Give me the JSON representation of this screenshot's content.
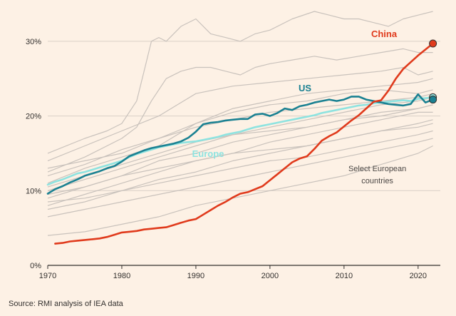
{
  "chart_data": {
    "type": "line",
    "title": "",
    "xlabel": "",
    "ylabel": "",
    "xlim": [
      1970,
      2023
    ],
    "ylim": [
      0,
      34
    ],
    "x_ticks": [
      1970,
      1980,
      1990,
      2000,
      2010,
      2020
    ],
    "x_tick_labels": [
      "1970",
      "1980",
      "1990",
      "2000",
      "2010",
      "2020"
    ],
    "y_ticks": [
      0,
      10,
      20,
      30
    ],
    "y_tick_labels": [
      "0%",
      "10%",
      "20%",
      "30%"
    ],
    "grid": "horizontal",
    "colors": {
      "china": "#e03a1c",
      "us": "#1a8192",
      "europe": "#8ee3e0",
      "countries": "#c9c2bc",
      "axis": "#33302e",
      "grid": "#d9d0c7"
    },
    "highlight_series": [
      {
        "name": "China",
        "label": "China",
        "endpoint_marker": true,
        "x": [
          1971,
          1972,
          1973,
          1974,
          1975,
          1976,
          1977,
          1978,
          1979,
          1980,
          1981,
          1982,
          1983,
          1984,
          1985,
          1986,
          1987,
          1988,
          1989,
          1990,
          1991,
          1992,
          1993,
          1994,
          1995,
          1996,
          1997,
          1998,
          1999,
          2000,
          2001,
          2002,
          2003,
          2004,
          2005,
          2006,
          2007,
          2008,
          2009,
          2010,
          2011,
          2012,
          2013,
          2014,
          2015,
          2016,
          2017,
          2018,
          2019,
          2020,
          2021,
          2022
        ],
        "values": [
          2.9,
          3.0,
          3.2,
          3.3,
          3.4,
          3.5,
          3.6,
          3.8,
          4.1,
          4.4,
          4.5,
          4.6,
          4.8,
          4.9,
          5.0,
          5.1,
          5.4,
          5.7,
          6.0,
          6.2,
          6.8,
          7.4,
          8.0,
          8.5,
          9.1,
          9.6,
          9.8,
          10.2,
          10.6,
          11.4,
          12.2,
          13.0,
          13.8,
          14.3,
          14.6,
          15.6,
          16.7,
          17.3,
          17.8,
          18.6,
          19.4,
          20.1,
          21.0,
          21.9,
          22.1,
          23.4,
          25.0,
          26.3,
          27.2,
          28.1,
          28.9,
          29.7
        ]
      },
      {
        "name": "US",
        "label": "US",
        "endpoint_marker": true,
        "x": [
          1970,
          1971,
          1972,
          1973,
          1974,
          1975,
          1976,
          1977,
          1978,
          1979,
          1980,
          1981,
          1982,
          1983,
          1984,
          1985,
          1986,
          1987,
          1988,
          1989,
          1990,
          1991,
          1992,
          1993,
          1994,
          1995,
          1996,
          1997,
          1998,
          1999,
          2000,
          2001,
          2002,
          2003,
          2004,
          2005,
          2006,
          2007,
          2008,
          2009,
          2010,
          2011,
          2012,
          2013,
          2014,
          2015,
          2016,
          2017,
          2018,
          2019,
          2020,
          2021,
          2022
        ],
        "values": [
          9.6,
          10.2,
          10.6,
          11.1,
          11.5,
          12.0,
          12.3,
          12.6,
          13.0,
          13.3,
          13.9,
          14.6,
          15.0,
          15.4,
          15.7,
          15.9,
          16.1,
          16.3,
          16.6,
          17.1,
          17.9,
          18.9,
          19.1,
          19.2,
          19.4,
          19.5,
          19.6,
          19.6,
          20.2,
          20.3,
          20.0,
          20.4,
          21.0,
          20.8,
          21.3,
          21.5,
          21.8,
          22.0,
          22.2,
          22.0,
          22.2,
          22.6,
          22.6,
          22.2,
          22.0,
          21.8,
          21.6,
          21.5,
          21.4,
          21.6,
          22.9,
          21.8,
          22.2
        ]
      },
      {
        "name": "Europe",
        "label": "Europe",
        "endpoint_marker": true,
        "x": [
          1970,
          1971,
          1972,
          1973,
          1974,
          1975,
          1976,
          1977,
          1978,
          1979,
          1980,
          1981,
          1982,
          1983,
          1984,
          1985,
          1986,
          1987,
          1988,
          1989,
          1990,
          1991,
          1992,
          1993,
          1994,
          1995,
          1996,
          1997,
          1998,
          1999,
          2000,
          2001,
          2002,
          2003,
          2004,
          2005,
          2006,
          2007,
          2008,
          2009,
          2010,
          2011,
          2012,
          2013,
          2014,
          2015,
          2016,
          2017,
          2018,
          2019,
          2020,
          2021,
          2022
        ],
        "values": [
          10.8,
          11.2,
          11.5,
          11.9,
          12.3,
          12.5,
          12.8,
          13.1,
          13.4,
          13.7,
          14.0,
          14.5,
          14.9,
          15.2,
          15.5,
          15.8,
          16.0,
          16.2,
          16.4,
          16.5,
          16.6,
          16.8,
          17.0,
          17.2,
          17.5,
          17.7,
          17.9,
          18.2,
          18.5,
          18.7,
          18.9,
          19.1,
          19.3,
          19.5,
          19.7,
          19.9,
          20.1,
          20.4,
          20.6,
          20.8,
          21.0,
          21.2,
          21.4,
          21.5,
          21.7,
          21.8,
          21.9,
          22.0,
          22.1,
          22.0,
          22.3,
          22.4,
          22.5
        ]
      }
    ],
    "background_series": [
      {
        "name": "country-1",
        "x": [
          1970,
          1975,
          1978,
          1980,
          1982,
          1983,
          1984,
          1985,
          1986,
          1988,
          1990,
          1992,
          1994,
          1996,
          1998,
          2000,
          2003,
          2006,
          2008,
          2010,
          2012,
          2014,
          2016,
          2018,
          2020,
          2022
        ],
        "values": [
          15,
          17,
          18,
          19,
          22,
          26,
          30,
          30.5,
          30,
          32,
          33,
          31,
          30.5,
          30,
          31,
          31.5,
          33,
          34,
          33.5,
          33,
          33,
          32.5,
          32,
          33,
          33.5,
          34
        ]
      },
      {
        "name": "country-2",
        "x": [
          1970,
          1975,
          1980,
          1982,
          1984,
          1986,
          1988,
          1990,
          1992,
          1994,
          1996,
          1998,
          2000,
          2003,
          2006,
          2009,
          2012,
          2015,
          2018,
          2020,
          2022
        ],
        "values": [
          12.5,
          14.5,
          17,
          18.5,
          22,
          25,
          26,
          26.5,
          26.5,
          26,
          25.5,
          26.5,
          27,
          27.5,
          28,
          27.5,
          28,
          28.5,
          29,
          28.5,
          28.5
        ]
      },
      {
        "name": "country-3",
        "x": [
          1970,
          1975,
          1980,
          1985,
          1990,
          1995,
          2000,
          2005,
          2010,
          2015,
          2018,
          2020,
          2022
        ],
        "values": [
          14,
          16,
          18,
          20,
          23,
          24,
          24.5,
          25,
          25.5,
          26,
          26.5,
          25.5,
          26
        ]
      },
      {
        "name": "country-4",
        "x": [
          1970,
          1975,
          1980,
          1985,
          1990,
          1995,
          2000,
          2005,
          2010,
          2015,
          2020,
          2022
        ],
        "values": [
          11,
          13,
          14.5,
          16,
          19,
          21,
          22,
          23,
          23.5,
          24,
          24.5,
          25
        ]
      },
      {
        "name": "country-5",
        "x": [
          1970,
          1975,
          1980,
          1985,
          1990,
          1995,
          2000,
          2005,
          2010,
          2015,
          2020,
          2022
        ],
        "values": [
          13,
          14,
          15,
          17,
          19,
          20.5,
          21.5,
          22,
          23,
          23.5,
          23,
          23.5
        ]
      },
      {
        "name": "country-6",
        "x": [
          1970,
          1975,
          1980,
          1985,
          1990,
          1995,
          2000,
          2005,
          2010,
          2015,
          2020,
          2022
        ],
        "values": [
          10,
          11.5,
          13,
          14.5,
          16,
          17.5,
          18.5,
          19.5,
          20.5,
          21.5,
          22,
          22.5
        ]
      },
      {
        "name": "country-7",
        "x": [
          1970,
          1975,
          1980,
          1985,
          1990,
          1995,
          2000,
          2005,
          2010,
          2015,
          2020,
          2022
        ],
        "values": [
          9,
          10.5,
          12,
          14,
          15,
          16.5,
          17.5,
          18.5,
          19.5,
          20.5,
          21,
          21.5
        ]
      },
      {
        "name": "country-8",
        "x": [
          1970,
          1975,
          1980,
          1985,
          1990,
          1995,
          2000,
          2005,
          2010,
          2015,
          2020,
          2022
        ],
        "values": [
          8,
          9.5,
          11,
          12.5,
          14,
          15,
          16.5,
          17.5,
          18.5,
          19.5,
          20.5,
          20.5
        ]
      },
      {
        "name": "country-9",
        "x": [
          1970,
          1975,
          1980,
          1985,
          1990,
          1995,
          2000,
          2005,
          2010,
          2015,
          2020,
          2022
        ],
        "values": [
          7.5,
          8.5,
          10,
          11.5,
          12.5,
          14,
          15,
          16,
          17,
          18,
          19,
          19.5
        ]
      },
      {
        "name": "country-10",
        "x": [
          1970,
          1975,
          1980,
          1985,
          1990,
          1995,
          2000,
          2005,
          2010,
          2015,
          2020,
          2022
        ],
        "values": [
          8.5,
          9,
          10,
          11,
          12,
          13,
          14,
          14.5,
          15.5,
          16.5,
          17.5,
          18
        ]
      },
      {
        "name": "country-11",
        "x": [
          1970,
          1975,
          1980,
          1985,
          1990,
          1995,
          2000,
          2005,
          2010,
          2015,
          2020,
          2022
        ],
        "values": [
          6.5,
          7.5,
          8.5,
          9.5,
          10.5,
          11.5,
          12.5,
          13.5,
          14.5,
          15.5,
          16.5,
          17
        ]
      },
      {
        "name": "country-12",
        "x": [
          1970,
          1975,
          1980,
          1985,
          1990,
          1995,
          2000,
          2005,
          2010,
          2015,
          2020,
          2022
        ],
        "values": [
          4,
          4.5,
          5.5,
          6.5,
          8,
          9,
          10,
          11,
          12,
          13.5,
          15,
          16
        ]
      },
      {
        "name": "country-13",
        "x": [
          1970,
          1975,
          1980,
          1985,
          1990,
          1995,
          2000,
          2005,
          2010,
          2015,
          2020,
          2022
        ],
        "values": [
          12,
          13.5,
          15.5,
          17,
          18.5,
          19.5,
          20.5,
          21,
          21.5,
          22,
          22.5,
          23
        ]
      },
      {
        "name": "country-14",
        "x": [
          1970,
          1975,
          1980,
          1985,
          1990,
          1995,
          2000,
          2005,
          2010,
          2015,
          2020,
          2022
        ],
        "values": [
          9.5,
          10.5,
          12,
          13,
          14,
          15,
          15.5,
          16,
          17,
          18,
          18.5,
          19
        ]
      },
      {
        "name": "country-15",
        "x": [
          1970,
          1975,
          1980,
          1985,
          1990,
          1995,
          2000,
          2005,
          2010,
          2015,
          2020,
          2022
        ],
        "values": [
          10.5,
          12,
          13.5,
          15,
          16.5,
          17.5,
          18,
          18.5,
          19.5,
          20,
          21,
          21.5
        ]
      }
    ],
    "annotations": [
      {
        "name": "select-european-countries",
        "lines": [
          "Select European",
          "countries"
        ],
        "x": 2014.5,
        "y": 12.6
      }
    ],
    "source": "Source: RMI analysis of IEA data"
  }
}
